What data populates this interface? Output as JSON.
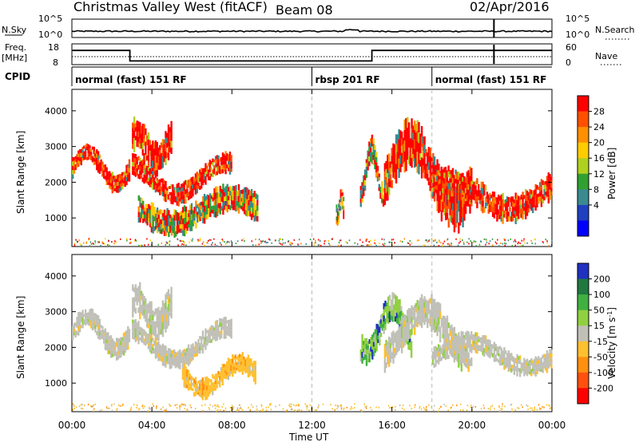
{
  "header": {
    "title": "Christmas Valley West (fitACF)",
    "beam": "Beam 08",
    "date": "02/Apr/2016"
  },
  "nsky_panel": {
    "left_label": "N.Sky",
    "right_label": "N.Search",
    "ticks_left": [
      "10^5",
      "10^0"
    ],
    "ticks_right": [
      "10^5",
      "10^0"
    ]
  },
  "freq_panel": {
    "left_label_1": "Freq.",
    "left_label_2": "[MHz]",
    "right_label": "Nave",
    "ticks_left": [
      "18",
      "8"
    ],
    "ticks_right": [
      "60",
      "0"
    ],
    "freq_steps": [
      {
        "t0": 0,
        "t1": 2.9,
        "f": 15.0
      },
      {
        "t0": 2.9,
        "t1": 15.0,
        "f": 9.5
      },
      {
        "t0": 15.0,
        "t1": 21.1,
        "f": 15.0
      },
      {
        "t0": 21.1,
        "t1": 24,
        "f": 15.0
      }
    ]
  },
  "cpid": {
    "label": "CPID",
    "segments": [
      {
        "start": 0,
        "text": "normal (fast) 151 RF"
      },
      {
        "start": 12,
        "text": "rbsp 201 RF"
      },
      {
        "start": 18,
        "text": "normal (fast) 151 RF"
      }
    ]
  },
  "power_panel": {
    "ylabel": "Slant Range [km]",
    "cbar_label": "Power [dB]",
    "cbar_ticks": [
      "28",
      "24",
      "20",
      "16",
      "12",
      "8",
      "4"
    ],
    "cbar_colors": [
      "#ff0000",
      "#ff5000",
      "#ff9000",
      "#ffcc00",
      "#b0d020",
      "#30a030",
      "#3a8a90",
      "#2040c0",
      "#0000ff"
    ],
    "yticks": [
      "4000",
      "3000",
      "2000",
      "1000"
    ]
  },
  "velocity_panel": {
    "ylabel": "Slant Range [km]",
    "cbar_label": "Velocity [m s",
    "cbar_label_sup": "-1",
    "cbar_label_end": "]",
    "cbar_ticks": [
      "200",
      "100",
      "50",
      "15",
      "-15",
      "-50",
      "-100",
      "-200"
    ],
    "cbar_colors": [
      "#2030c0",
      "#207840",
      "#40b040",
      "#90d040",
      "#c0c0b8",
      "#ffc030",
      "#ff9010",
      "#ff5010",
      "#ff0000"
    ],
    "yticks": [
      "4000",
      "3000",
      "2000",
      "1000"
    ]
  },
  "chart_data": {
    "type": "heatmap",
    "xlabel": "Time UT",
    "xticks": [
      "00:00",
      "04:00",
      "08:00",
      "12:00",
      "16:00",
      "20:00",
      "00:00"
    ],
    "xlim": [
      0,
      24
    ],
    "ylim": [
      200,
      4600
    ],
    "dashed_times": [
      12,
      18
    ],
    "power_bands": [
      {
        "t0": 0.0,
        "t1": 2.9,
        "r0": 1900,
        "r1": 2900,
        "dr": 300,
        "level": "high"
      },
      {
        "t0": 3.0,
        "t1": 5.0,
        "r0": 2600,
        "r1": 3400,
        "dr": 500,
        "level": "high"
      },
      {
        "t0": 3.0,
        "t1": 8.0,
        "r0": 1600,
        "r1": 2600,
        "dr": 300,
        "level": "high"
      },
      {
        "t0": 3.3,
        "t1": 9.3,
        "r0": 800,
        "r1": 1600,
        "dr": 400,
        "level": "mid"
      },
      {
        "t0": 13.2,
        "t1": 13.6,
        "r0": 1000,
        "r1": 1600,
        "dr": 300,
        "level": "mid"
      },
      {
        "t0": 14.4,
        "t1": 15.6,
        "r0": 1500,
        "r1": 3000,
        "dr": 400,
        "level": "mid"
      },
      {
        "t0": 15.6,
        "t1": 20.0,
        "r0": 1200,
        "r1": 3200,
        "dr": 700,
        "level": "high"
      },
      {
        "t0": 18.0,
        "t1": 24.0,
        "r0": 1200,
        "r1": 2100,
        "dr": 400,
        "level": "high"
      }
    ],
    "velocity_bands": [
      {
        "t0": 0.0,
        "t1": 2.9,
        "r0": 1900,
        "r1": 2900,
        "dr": 300,
        "level": "low"
      },
      {
        "t0": 3.0,
        "t1": 5.0,
        "r0": 2600,
        "r1": 3400,
        "dr": 500,
        "level": "low"
      },
      {
        "t0": 3.0,
        "t1": 8.0,
        "r0": 1600,
        "r1": 2600,
        "dr": 300,
        "level": "low"
      },
      {
        "t0": 5.5,
        "t1": 9.2,
        "r0": 800,
        "r1": 1600,
        "dr": 300,
        "level": "neg"
      },
      {
        "t0": 14.4,
        "t1": 17.0,
        "r0": 1800,
        "r1": 3200,
        "dr": 400,
        "level": "pos"
      },
      {
        "t0": 15.6,
        "t1": 20.0,
        "r0": 1700,
        "r1": 3100,
        "dr": 500,
        "level": "low"
      },
      {
        "t0": 18.0,
        "t1": 24.0,
        "r0": 1400,
        "r1": 2200,
        "dr": 300,
        "level": "low"
      }
    ]
  }
}
